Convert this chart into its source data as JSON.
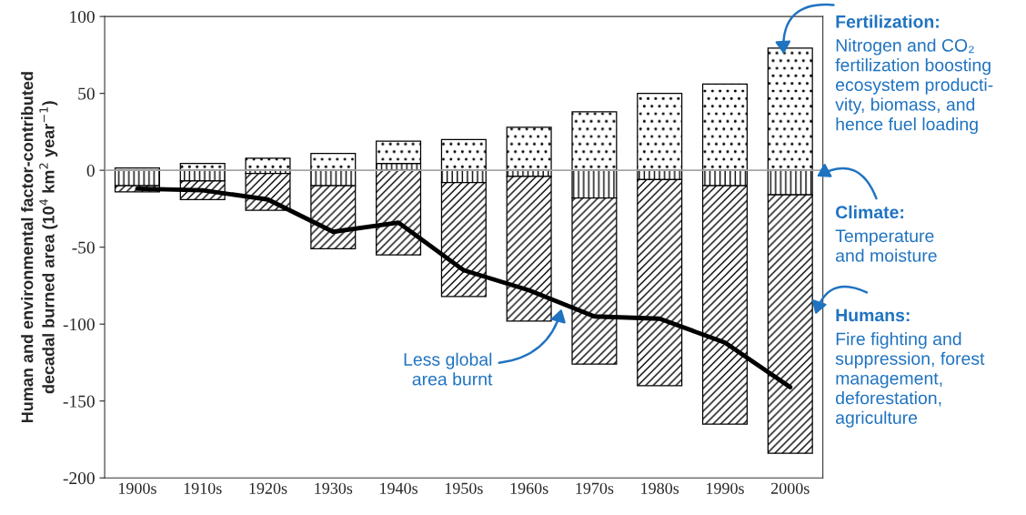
{
  "chart_data": {
    "type": "bar",
    "stacked": true,
    "ylabel": "Human and environmental factor-contributed\ndecadal burned area (10$^{4}$ km$^{2}$ year$^{−1}$)",
    "categories": [
      "1900s",
      "1910s",
      "1920s",
      "1930s",
      "1940s",
      "1950s",
      "1960s",
      "1970s",
      "1980s",
      "1990s",
      "2000s"
    ],
    "series": [
      {
        "name": "Climate:",
        "color": "#000000",
        "values": [
          -10,
          -7,
          -2,
          -10,
          4.5,
          -8,
          -4,
          -18,
          -6,
          -10,
          -16
        ]
      },
      {
        "name": "Humans:",
        "color": "#000000",
        "values": [
          -4,
          -12,
          -24,
          -41,
          -55,
          -74,
          -94,
          -108,
          -134,
          -155,
          -168
        ]
      },
      {
        "name": "Fertilization:",
        "color": "#000000",
        "values": [
          1.5,
          4.4,
          7.8,
          11,
          14.5,
          20,
          28,
          38,
          50,
          56,
          79.5
        ]
      },
      {
        "type": "line",
        "color": "#000000",
        "values": [
          -12,
          -13,
          -19,
          -40,
          -34,
          -65,
          -78,
          -95,
          -96.5,
          -112,
          -141
        ]
      }
    ],
    "ylim": [
      -200,
      100
    ],
    "yticks": [
      -200,
      -150,
      -100,
      -50,
      0,
      50,
      100
    ],
    "ref_lines": [
      {
        "axis": "y",
        "value": 0,
        "color": "#a6a6a6"
      }
    ],
    "annotations": [
      "Temperature\nand moisture",
      "Fire fighting and\nsuppression, forest\nmanagement,\ndeforestation,\nagriculture",
      "Nitrogen and CO₂\nfertilization boosting\necosystem producti-\nvity, biomass, and\nhence fuel loading",
      "Less global\narea burnt"
    ],
    "grid": false,
    "legend": false
  }
}
